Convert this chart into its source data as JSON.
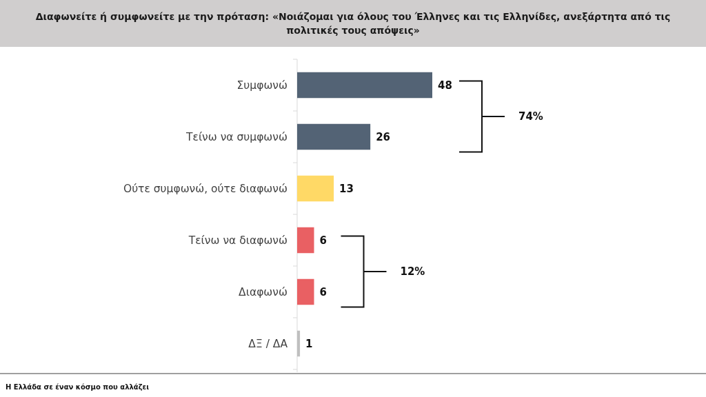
{
  "chart_data": {
    "type": "bar",
    "orientation": "horizontal",
    "title": "Διαφωνείτε ή συμφωνείτε με την πρόταση: «Νοιάζομαι για όλους του Έλληνες και τις Ελληνίδες, ανεξάρτητα από τις πολιτικές τους απόψεις»",
    "categories": [
      "Συμφωνώ",
      "Τείνω να συμφωνώ",
      "Ούτε συμφωνώ, ούτε διαφωνώ",
      "Τείνω να διαφωνώ",
      "Διαφωνώ",
      "ΔΞ / ΔΑ"
    ],
    "values": [
      48,
      26,
      13,
      6,
      6,
      1
    ],
    "colors": [
      "#536375",
      "#536375",
      "#ffd966",
      "#e96063",
      "#e96063",
      "#bfbfbf"
    ],
    "data_labels": true,
    "tick_labels": "y",
    "annotations": [
      "74%",
      "12%",
      "Η Ελλάδα σε έναν κόσμο που αλλάζει"
    ]
  }
}
